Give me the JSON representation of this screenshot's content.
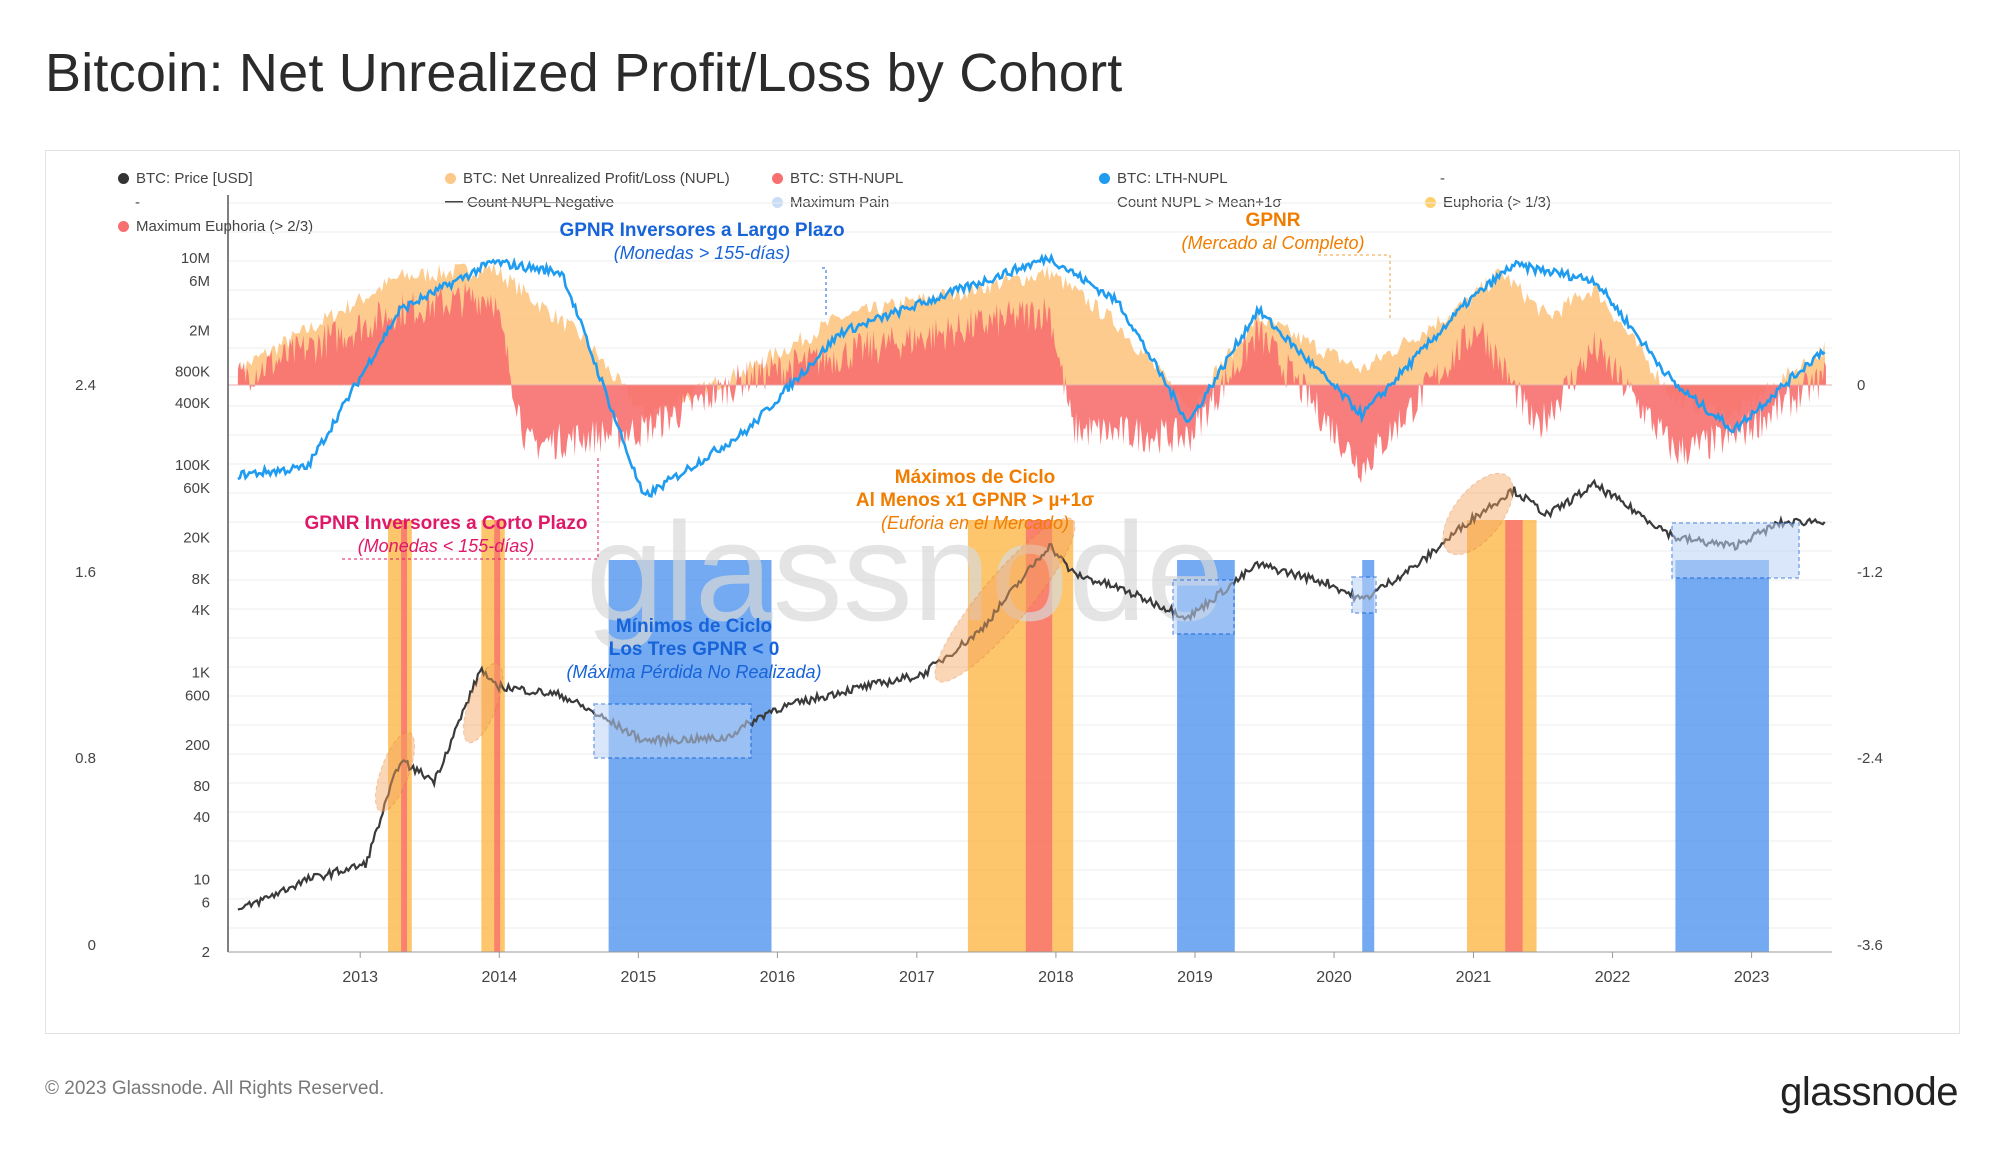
{
  "title": "Bitcoin: Net Unrealized Profit/Loss by Cohort",
  "footer": "© 2023 Glassnode. All Rights Reserved.",
  "brand": "glassnode",
  "watermark": "glassnode",
  "colors": {
    "price": "#3a3a3a",
    "nupl": "#fcc887",
    "sth": "#f76f6f",
    "lth": "#1f9cf0",
    "max_pain": "#c9ddf7",
    "euphoria": "#ffd06b",
    "max_euphoria": "#f76f6f",
    "capitulation_band": "#5b9bf0",
    "euphoria_band": "#fdbc52"
  },
  "legend": [
    {
      "label": "BTC: Price [USD]",
      "color": "#333333",
      "kind": "dot"
    },
    {
      "label": "BTC: Net Unrealized Profit/Loss (NUPL)",
      "color": "#fcc887",
      "kind": "dot"
    },
    {
      "label": "BTC: STH-NUPL",
      "color": "#f76f6f",
      "kind": "dot"
    },
    {
      "label": "BTC: LTH-NUPL",
      "color": "#1f9cf0",
      "kind": "dot"
    },
    {
      "label": "-",
      "color": "",
      "kind": "text"
    },
    {
      "label": "-",
      "color": "",
      "kind": "text"
    },
    {
      "label": "Count NUPL Negative",
      "color": "#444444",
      "kind": "line"
    },
    {
      "label": "Maximum Pain",
      "color": "#c9ddf7",
      "kind": "dot"
    },
    {
      "label": "Count NUPL > Mean+1σ",
      "color": "",
      "kind": "text"
    },
    {
      "label": "Euphoria (> 1/3)",
      "color": "#ffd06b",
      "kind": "dot"
    },
    {
      "label": "Maximum Euphoria (> 2/3)",
      "color": "#f76f6f",
      "kind": "dot"
    }
  ],
  "annotations": {
    "lth": {
      "title": "GPNR Inversores a Largo Plazo",
      "subtitle": "(Monedas > 155-días)"
    },
    "nupl": {
      "title": "GPNR",
      "subtitle": "(Mercado al Completo)"
    },
    "sth": {
      "title": "GPNR Inversores a Corto Plazo",
      "subtitle": "(Monedas < 155-días)"
    },
    "tops": {
      "line1": "Máximos de Ciclo",
      "line2": "Al Menos x1 GPNR > µ+1σ",
      "line3": "(Euforia en el Mercado)"
    },
    "bottoms": {
      "line1": "Mínimos de Ciclo",
      "line2": "Los Tres GPNR < 0",
      "line3": "(Máxima Pérdida No Realizada)"
    }
  },
  "chart_data": {
    "type": "line",
    "x_range": [
      "2012-01-20",
      "2023-07-31"
    ],
    "x_ticks": [
      "2013",
      "2014",
      "2015",
      "2016",
      "2017",
      "2018",
      "2019",
      "2020",
      "2021",
      "2022",
      "2023"
    ],
    "y_left_price_ticks": [
      "10M",
      "6M",
      "2M",
      "800K",
      "400K",
      "100K",
      "60K",
      "20K",
      "8K",
      "4K",
      "1K",
      "600",
      "200",
      "80",
      "40",
      "10",
      "6",
      "2"
    ],
    "y_left_count_ticks": [
      "2.4",
      "1.6",
      "0.8",
      "0"
    ],
    "y_right_ticks": [
      "0",
      "-1.2",
      "-2.4",
      "-3.6"
    ],
    "series": [
      {
        "name": "BTC: Price [USD]",
        "scale": "log",
        "x": [
          "2012-02",
          "2012-08",
          "2013-01",
          "2013-04",
          "2013-07",
          "2013-11",
          "2013-12",
          "2014-06",
          "2015-01",
          "2015-08",
          "2015-12",
          "2016-06",
          "2017-01",
          "2017-06",
          "2017-12",
          "2018-02",
          "2018-06",
          "2018-12",
          "2019-06",
          "2019-12",
          "2020-03",
          "2020-08",
          "2020-12",
          "2021-04",
          "2021-07",
          "2021-11",
          "2022-06",
          "2022-11",
          "2023-03",
          "2023-07"
        ],
        "values": [
          5,
          10,
          14,
          140,
          90,
          1100,
          750,
          600,
          220,
          230,
          430,
          650,
          950,
          2500,
          17000,
          9000,
          6500,
          3400,
          11000,
          7300,
          5000,
          11500,
          28000,
          58000,
          33000,
          65000,
          20000,
          16500,
          27500,
          29500
        ]
      },
      {
        "name": "BTC: Net Unrealized Profit/Loss (NUPL)",
        "x": [
          "2012-02",
          "2013-04",
          "2013-12",
          "2014-08",
          "2015-01",
          "2015-10",
          "2016-06",
          "2017-12",
          "2018-06",
          "2018-12",
          "2019-06",
          "2020-03",
          "2020-12",
          "2021-03",
          "2021-07",
          "2021-11",
          "2022-06",
          "2022-11",
          "2023-07"
        ],
        "values": [
          0.1,
          0.72,
          0.78,
          0.3,
          -0.2,
          0.1,
          0.45,
          0.75,
          0.4,
          -0.15,
          0.45,
          0.1,
          0.55,
          0.75,
          0.45,
          0.65,
          -0.1,
          -0.2,
          0.25
        ]
      },
      {
        "name": "BTC: STH-NUPL",
        "x": [
          "2012-02",
          "2013-04",
          "2013-12",
          "2014-03",
          "2015-01",
          "2015-10",
          "2016-06",
          "2017-12",
          "2018-02",
          "2018-12",
          "2019-06",
          "2020-03",
          "2021-01",
          "2021-06",
          "2021-11",
          "2022-06",
          "2022-11",
          "2023-07"
        ],
        "values": [
          0.05,
          0.5,
          0.6,
          -0.4,
          -0.3,
          0.05,
          0.2,
          0.5,
          -0.3,
          -0.35,
          0.35,
          -0.55,
          0.4,
          -0.3,
          0.25,
          -0.45,
          -0.35,
          0.05
        ]
      },
      {
        "name": "BTC: LTH-NUPL",
        "x": [
          "2012-02",
          "2012-08",
          "2013-04",
          "2013-12",
          "2014-06",
          "2015-01",
          "2015-10",
          "2016-06",
          "2017-12",
          "2018-06",
          "2018-12",
          "2019-06",
          "2020-03",
          "2020-12",
          "2021-04",
          "2021-11",
          "2022-06",
          "2022-11",
          "2023-07"
        ],
        "values": [
          -0.6,
          -0.55,
          0.5,
          0.82,
          0.75,
          -0.75,
          -0.3,
          0.35,
          0.85,
          0.55,
          -0.25,
          0.5,
          -0.2,
          0.55,
          0.8,
          0.7,
          0.0,
          -0.3,
          0.25
        ]
      }
    ],
    "euphoria_periods": [
      [
        "2013-03",
        "2013-04"
      ],
      [
        "2013-11",
        "2013-12"
      ],
      [
        "2017-05",
        "2018-01"
      ],
      [
        "2020-12",
        "2021-05"
      ]
    ],
    "max_pain_periods": [
      [
        "2014-10",
        "2015-11"
      ],
      [
        "2018-11",
        "2019-03"
      ],
      [
        "2020-03",
        "2020-03"
      ],
      [
        "2022-06",
        "2023-01"
      ]
    ],
    "grid": true,
    "legend_position": "top"
  }
}
